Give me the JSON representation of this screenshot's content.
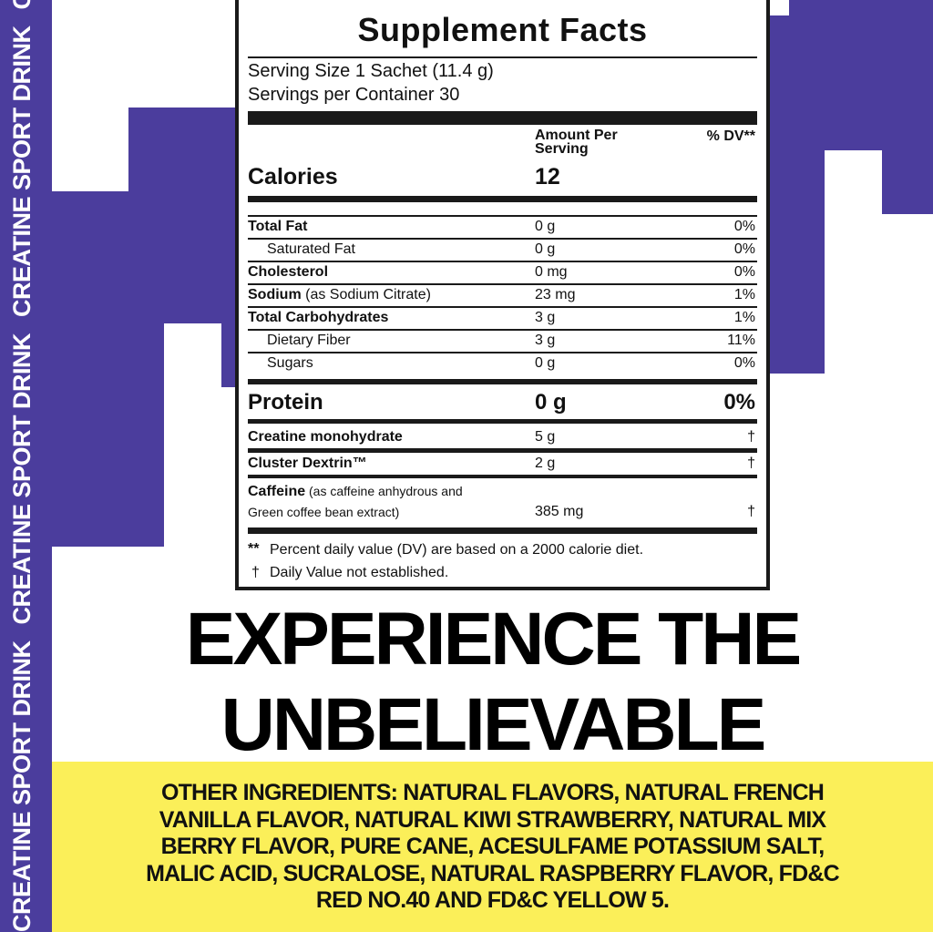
{
  "colors": {
    "purple": "#4b3d9d",
    "yellow": "#fbef59",
    "ink": "#111111"
  },
  "side_banner": {
    "text": "CREATINE SPORT DRINK"
  },
  "label": {
    "title": "Supplement Facts",
    "serving_size": "Serving Size 1 Sachet (11.4 g)",
    "servings_per_container": "Servings per Container 30",
    "amount_header": "Amount Per Serving",
    "dv_header": "% DV**",
    "calories": {
      "label": "Calories",
      "value": "12"
    },
    "rows": [
      {
        "name": "Total Fat",
        "note": "",
        "amount": "0 g",
        "dv": "0%",
        "bold": true,
        "indent": false
      },
      {
        "name": "Saturated Fat",
        "note": "",
        "amount": "0 g",
        "dv": "0%",
        "bold": false,
        "indent": true
      },
      {
        "name": "Cholesterol",
        "note": "",
        "amount": "0 mg",
        "dv": "0%",
        "bold": true,
        "indent": false
      },
      {
        "name": "Sodium",
        "note": " (as Sodium Citrate)",
        "amount": "23 mg",
        "dv": "1%",
        "bold": true,
        "indent": false
      },
      {
        "name": "Total Carbohydrates",
        "note": "",
        "amount": "3 g",
        "dv": "1%",
        "bold": true,
        "indent": false
      },
      {
        "name": "Dietary Fiber",
        "note": "",
        "amount": "3 g",
        "dv": "11%",
        "bold": false,
        "indent": true
      },
      {
        "name": "Sugars",
        "note": "",
        "amount": "0 g",
        "dv": "0%",
        "bold": false,
        "indent": true
      }
    ],
    "protein": {
      "label": "Protein",
      "amount": "0 g",
      "dv": "0%"
    },
    "creatine": {
      "label": "Creatine monohydrate",
      "amount": "5 g",
      "dv": "†"
    },
    "dextrin": {
      "label": "Cluster Dextrin™",
      "amount": "2 g",
      "dv": "†"
    },
    "caffeine": {
      "label": "Caffeine",
      "note1": " (as caffeine anhydrous and",
      "note2": "Green coffee bean extract)",
      "amount": "385 mg",
      "dv": "†"
    },
    "footnote1_mark": "**",
    "footnote1": "Percent daily value (DV) are based on a 2000 calorie diet.",
    "footnote2_mark": "†",
    "footnote2": "Daily Value not established."
  },
  "headline": {
    "line1": "EXPERIENCE THE",
    "line2": "UNBELIEVABLE"
  },
  "other_ingredients": {
    "lines": [
      "OTHER INGREDIENTS: NATURAL FLAVORS, NATURAL FRENCH",
      "VANILLA FLAVOR, NATURAL KIWI STRAWBERRY, NATURAL MIX",
      "BERRY FLAVOR, PURE CANE, ACESULFAME POTASSIUM SALT,",
      "MALIC ACID, SUCRALOSE, NATURAL RASPBERRY FLAVOR, FD&C",
      "RED NO.40 AND FD&C YELLOW 5."
    ]
  }
}
